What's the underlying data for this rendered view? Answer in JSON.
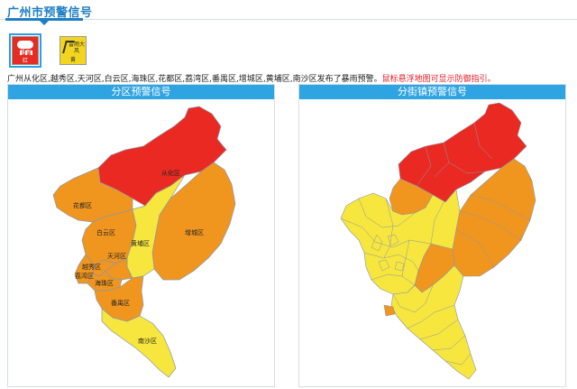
{
  "header": {
    "title": "广州市预警信号"
  },
  "warning_icons": [
    {
      "name": "暴雨",
      "level": "红",
      "color": "#e52d24"
    },
    {
      "name": "雷雨大风",
      "level": "黄",
      "color": "#f2d51f"
    }
  ],
  "notice": {
    "text": "广州从化区,越秀区,天河区,白云区,海珠区,花都区,荔湾区,番禺区,增城区,黄埔区,南沙区发布了暴雨预警。",
    "hint": "鼠标悬浮地图可显示防御指引。"
  },
  "panels": {
    "left_title": "分区预警信号",
    "right_title": "分街镇预警信号"
  },
  "colors": {
    "red": "#ea2a22",
    "orange": "#f0961f",
    "yellow": "#f7e63d",
    "border": "#8a96a8",
    "accent": "#2fa4e3"
  },
  "districts": [
    {
      "name": "从化区",
      "level": "red"
    },
    {
      "name": "花都区",
      "level": "orange"
    },
    {
      "name": "增城区",
      "level": "orange"
    },
    {
      "name": "白云区",
      "level": "orange"
    },
    {
      "name": "黄埔区",
      "level": "yellow"
    },
    {
      "name": "天河区",
      "level": "orange"
    },
    {
      "name": "越秀区",
      "level": "orange"
    },
    {
      "name": "荔湾区",
      "level": "orange"
    },
    {
      "name": "海珠区",
      "level": "orange"
    },
    {
      "name": "番禺区",
      "level": "orange"
    },
    {
      "name": "南沙区",
      "level": "yellow"
    }
  ]
}
